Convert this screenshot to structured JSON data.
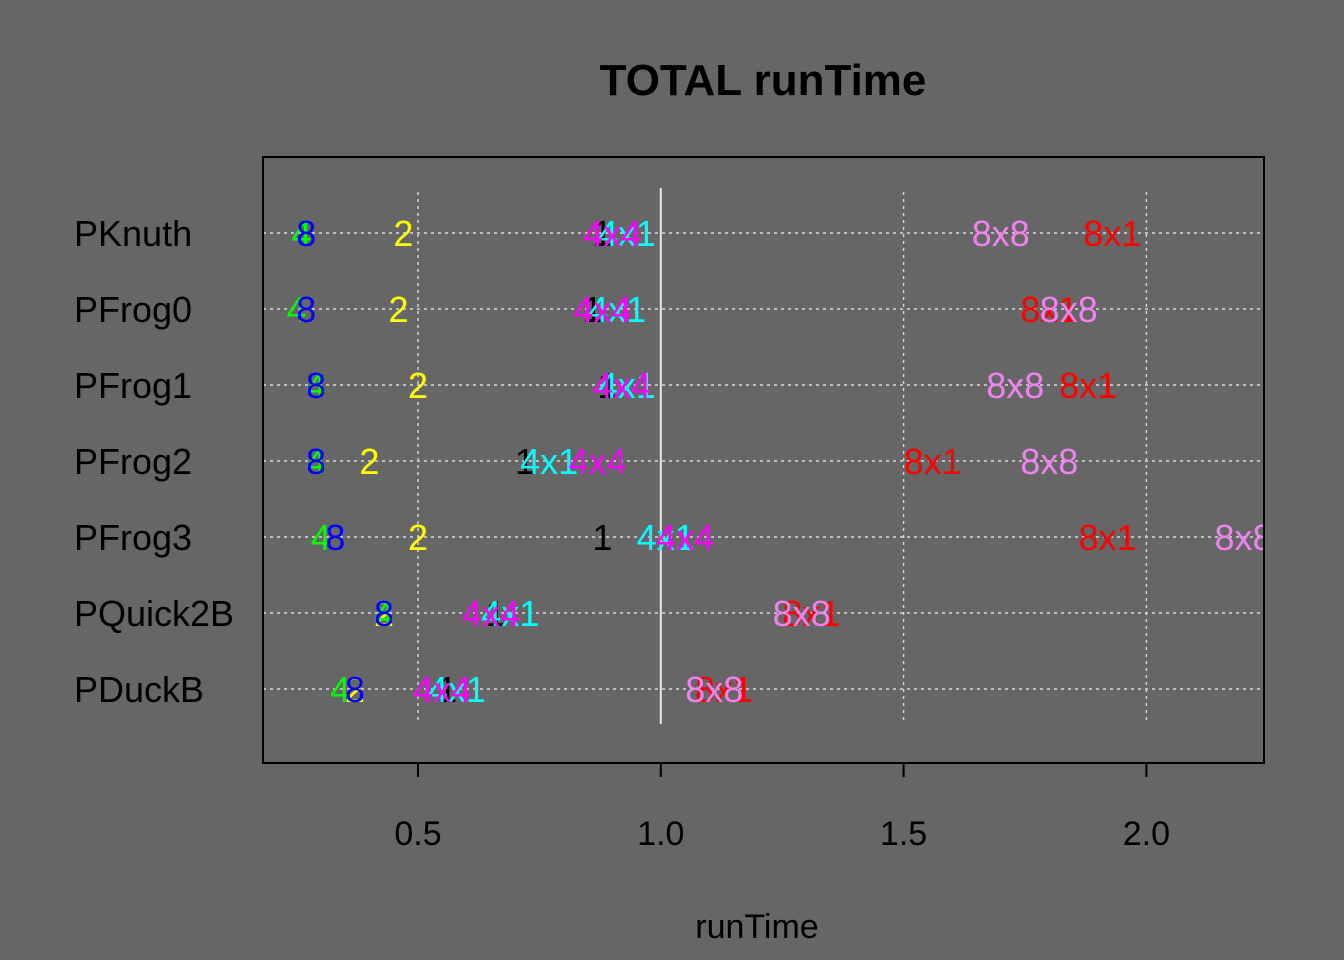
{
  "chart_data": {
    "type": "scatter",
    "title": "TOTAL runTime",
    "xlabel": "runTime",
    "ylabel": "",
    "xlim": [
      0.18,
      2.24
    ],
    "xticks": [
      0.5,
      1.0,
      1.5,
      2.0
    ],
    "xtick_labels": [
      "0.5",
      "1.0",
      "1.5",
      "2.0"
    ],
    "reference_line_x": 1.0,
    "grid": true,
    "categories": [
      "PKnuth",
      "PFrog0",
      "PFrog1",
      "PFrog2",
      "PFrog3",
      "PQuick2B",
      "PDuckB"
    ],
    "series": [
      {
        "label": "1",
        "color": "#000000",
        "values": [
          0.88,
          0.86,
          0.89,
          0.72,
          0.88,
          0.66,
          0.56
        ]
      },
      {
        "label": "2",
        "color": "#FFFF00",
        "values": [
          0.47,
          0.46,
          0.5,
          0.4,
          0.5,
          0.43,
          0.37
        ]
      },
      {
        "label": "4",
        "color": "#00FF00",
        "values": [
          0.26,
          0.25,
          0.29,
          0.29,
          0.3,
          0.43,
          0.34
        ]
      },
      {
        "label": "8",
        "color": "#0000FF",
        "values": [
          0.27,
          0.27,
          0.29,
          0.29,
          0.33,
          0.43,
          0.37
        ]
      },
      {
        "label": "4x1",
        "color": "#00FFFF",
        "values": [
          0.93,
          0.91,
          0.93,
          0.77,
          1.01,
          0.69,
          0.58
        ]
      },
      {
        "label": "4x4",
        "color": "#FF00FF",
        "values": [
          0.9,
          0.88,
          0.92,
          0.87,
          1.05,
          0.65,
          0.55
        ]
      },
      {
        "label": "8x1",
        "color": "#FF0000",
        "values": [
          1.93,
          1.8,
          1.88,
          1.56,
          1.92,
          1.31,
          1.13
        ]
      },
      {
        "label": "8x8",
        "color": "#EE82EE",
        "values": [
          1.7,
          1.84,
          1.73,
          1.8,
          2.2,
          1.29,
          1.11
        ]
      }
    ]
  }
}
